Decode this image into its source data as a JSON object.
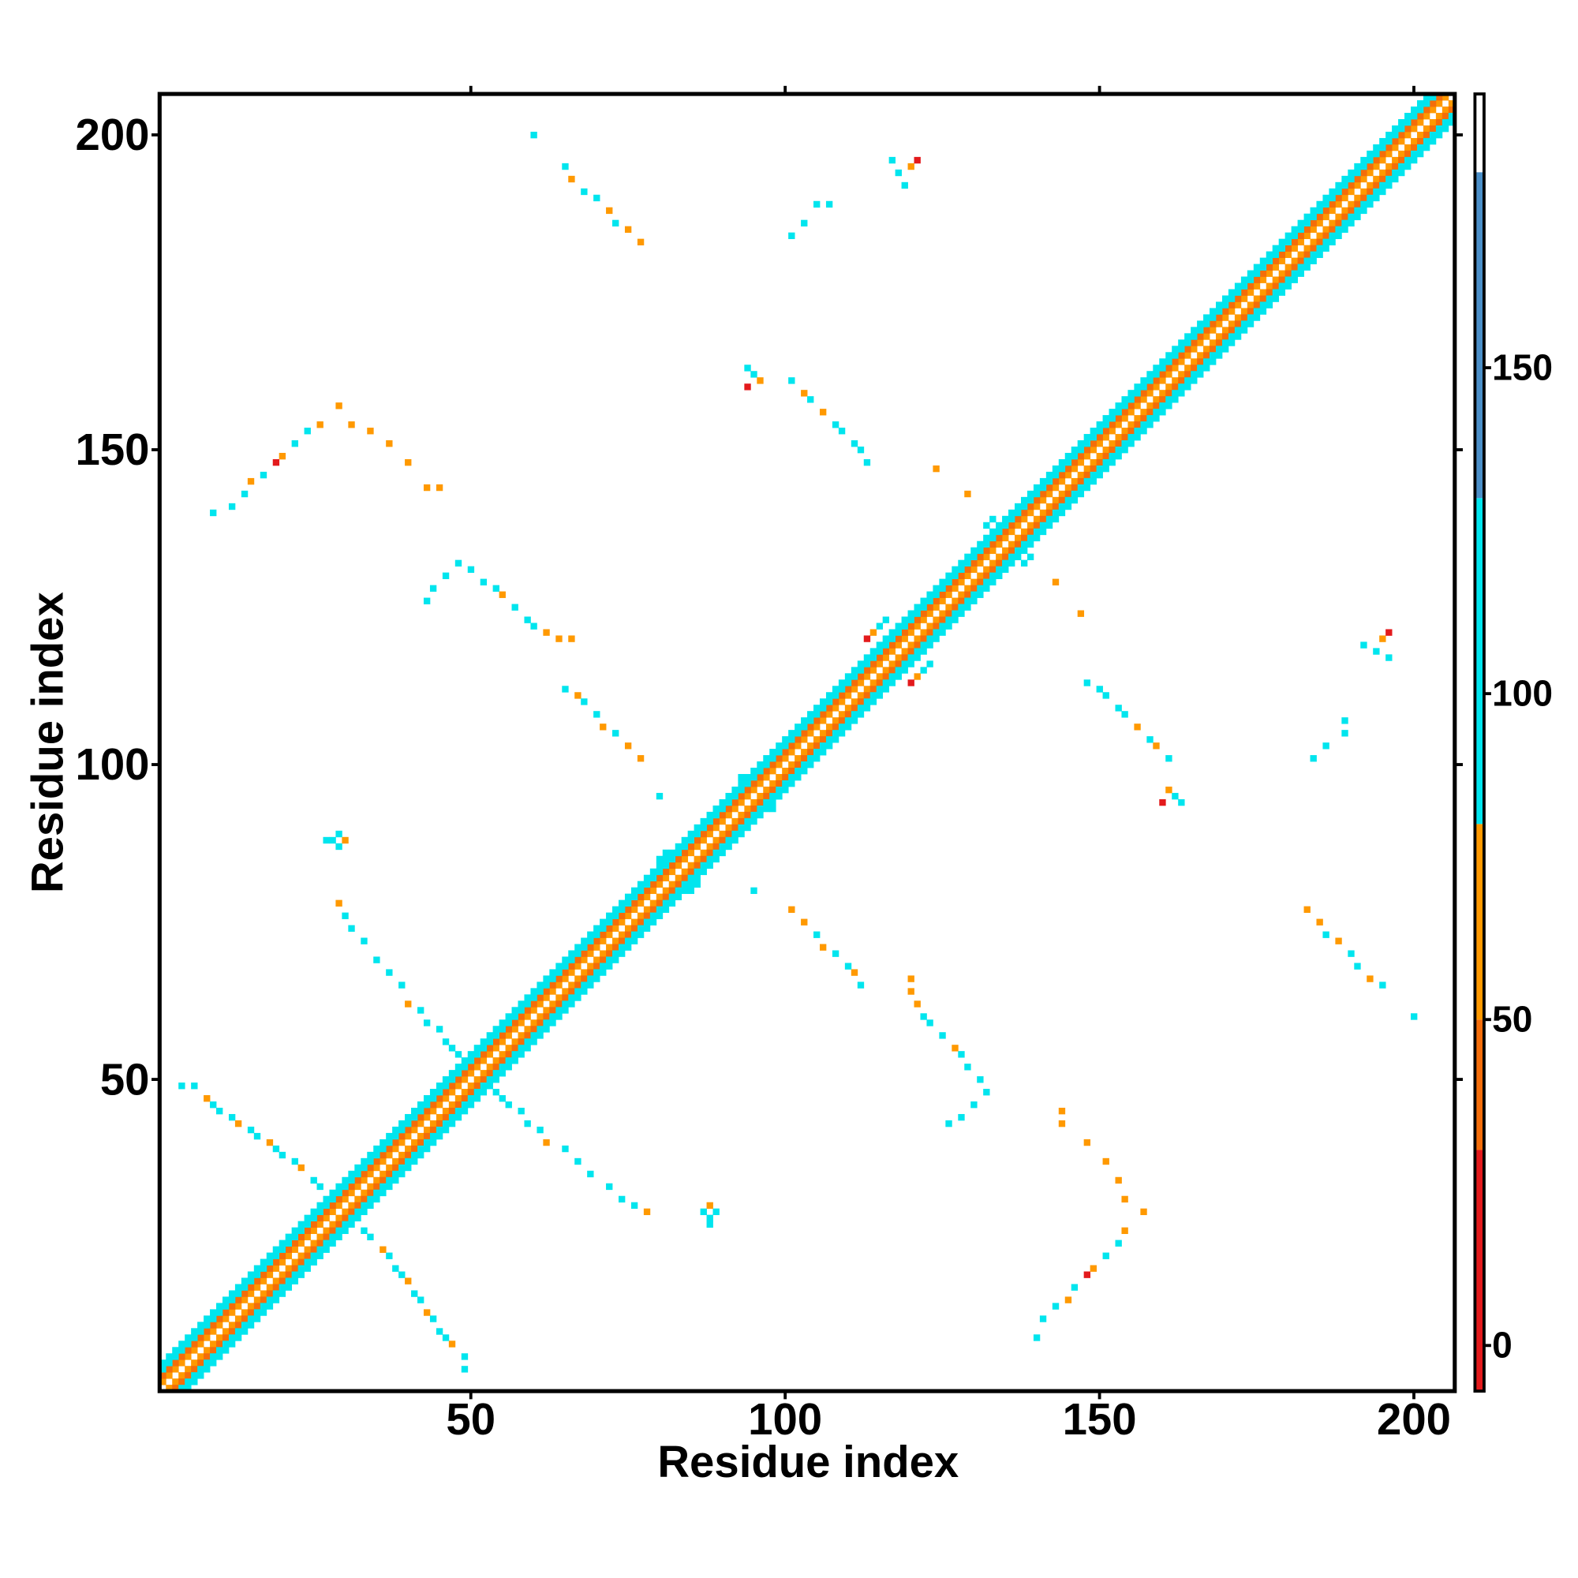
{
  "chart_data": {
    "type": "heatmap",
    "xlabel": "Residue index",
    "ylabel": "Residue index",
    "xlim": [
      0.5,
      206.5
    ],
    "ylim": [
      0.5,
      206.5
    ],
    "xticks": [
      50,
      100,
      150,
      200
    ],
    "yticks": [
      50,
      100,
      150,
      200
    ],
    "symmetric": true,
    "band": {
      "offsets": [
        1,
        2,
        3,
        4
      ],
      "values": [
        60,
        40,
        95,
        110
      ]
    },
    "cells": [
      [
        4,
        49,
        95
      ],
      [
        6,
        49,
        110
      ],
      [
        8,
        47,
        60
      ],
      [
        9,
        46,
        95
      ],
      [
        10,
        45,
        110
      ],
      [
        12,
        44,
        95
      ],
      [
        13,
        43,
        60
      ],
      [
        15,
        42,
        110
      ],
      [
        16,
        41,
        95
      ],
      [
        18,
        40,
        60
      ],
      [
        19,
        39,
        110
      ],
      [
        20,
        38,
        95
      ],
      [
        22,
        37,
        110
      ],
      [
        23,
        36,
        60
      ],
      [
        25,
        34,
        95
      ],
      [
        26,
        33,
        110
      ],
      [
        27,
        88,
        95
      ],
      [
        28,
        88,
        95
      ],
      [
        29,
        89,
        95
      ],
      [
        29,
        87,
        110
      ],
      [
        30,
        88,
        50
      ],
      [
        29,
        78,
        60
      ],
      [
        30,
        76,
        95
      ],
      [
        31,
        74,
        95
      ],
      [
        33,
        72,
        95
      ],
      [
        35,
        69,
        95
      ],
      [
        37,
        67,
        95
      ],
      [
        39,
        65,
        95
      ],
      [
        40,
        62,
        60
      ],
      [
        42,
        61,
        110
      ],
      [
        43,
        59,
        95
      ],
      [
        45,
        58,
        95
      ],
      [
        46,
        56,
        110
      ],
      [
        47,
        55,
        95
      ],
      [
        48,
        54,
        110
      ],
      [
        9,
        140,
        95
      ],
      [
        12,
        141,
        95
      ],
      [
        14,
        143,
        110
      ],
      [
        15,
        145,
        60
      ],
      [
        17,
        146,
        95
      ],
      [
        19,
        148,
        10
      ],
      [
        20,
        149,
        60
      ],
      [
        22,
        151,
        95
      ],
      [
        24,
        153,
        110
      ],
      [
        26,
        154,
        60
      ],
      [
        29,
        157,
        60
      ],
      [
        31,
        154,
        60
      ],
      [
        34,
        153,
        60
      ],
      [
        37,
        151,
        60
      ],
      [
        40,
        148,
        60
      ],
      [
        43,
        144,
        60
      ],
      [
        45,
        144,
        60
      ],
      [
        43,
        126,
        95
      ],
      [
        44,
        128,
        95
      ],
      [
        46,
        130,
        110
      ],
      [
        48,
        132,
        110
      ],
      [
        50,
        131,
        95
      ],
      [
        52,
        129,
        95
      ],
      [
        54,
        128,
        110
      ],
      [
        55,
        127,
        60
      ],
      [
        57,
        125,
        95
      ],
      [
        59,
        123,
        110
      ],
      [
        60,
        122,
        95
      ],
      [
        62,
        121,
        60
      ],
      [
        64,
        120,
        60
      ],
      [
        66,
        120,
        60
      ],
      [
        65,
        112,
        95
      ],
      [
        67,
        111,
        60
      ],
      [
        68,
        110,
        95
      ],
      [
        70,
        108,
        110
      ],
      [
        71,
        106,
        60
      ],
      [
        73,
        105,
        95
      ],
      [
        75,
        103,
        60
      ],
      [
        77,
        101,
        60
      ],
      [
        80,
        95,
        110
      ],
      [
        60,
        200,
        95
      ],
      [
        65,
        195,
        95
      ],
      [
        66,
        193,
        60
      ],
      [
        68,
        191,
        95
      ],
      [
        70,
        190,
        110
      ],
      [
        72,
        188,
        60
      ],
      [
        73,
        186,
        95
      ],
      [
        75,
        185,
        60
      ],
      [
        77,
        183,
        60
      ],
      [
        94,
        163,
        110
      ],
      [
        95,
        162,
        95
      ],
      [
        96,
        161,
        60
      ],
      [
        94,
        160,
        10
      ],
      [
        101,
        161,
        95
      ],
      [
        103,
        159,
        60
      ],
      [
        104,
        158,
        95
      ],
      [
        106,
        156,
        60
      ],
      [
        108,
        154,
        95
      ],
      [
        109,
        153,
        110
      ],
      [
        111,
        151,
        95
      ],
      [
        112,
        150,
        110
      ],
      [
        113,
        148,
        95
      ],
      [
        101,
        184,
        95
      ],
      [
        103,
        186,
        110
      ],
      [
        105,
        189,
        95
      ],
      [
        107,
        189,
        95
      ],
      [
        117,
        196,
        95
      ],
      [
        118,
        194,
        110
      ],
      [
        119,
        192,
        95
      ],
      [
        120,
        195,
        60
      ],
      [
        121,
        196,
        10
      ],
      [
        124,
        147,
        60
      ],
      [
        129,
        143,
        60
      ],
      [
        93,
        98,
        95
      ],
      [
        95,
        99,
        110
      ],
      [
        114,
        121,
        60
      ],
      [
        115,
        122,
        95
      ],
      [
        116,
        123,
        110
      ],
      [
        113,
        120,
        10
      ],
      [
        132,
        138,
        95
      ],
      [
        133,
        139,
        110
      ],
      [
        80,
        85,
        95
      ],
      [
        81,
        86,
        110
      ]
    ],
    "colorbar": {
      "bounds": [
        -7,
        30,
        50,
        80,
        130,
        180,
        192
      ],
      "colors": [
        "#e31a1c",
        "#f46d0a",
        "#ff9900",
        "#00e5ee",
        "#4b8fc8",
        "#ffffff"
      ],
      "ticks": [
        0,
        50,
        100,
        150
      ]
    }
  }
}
